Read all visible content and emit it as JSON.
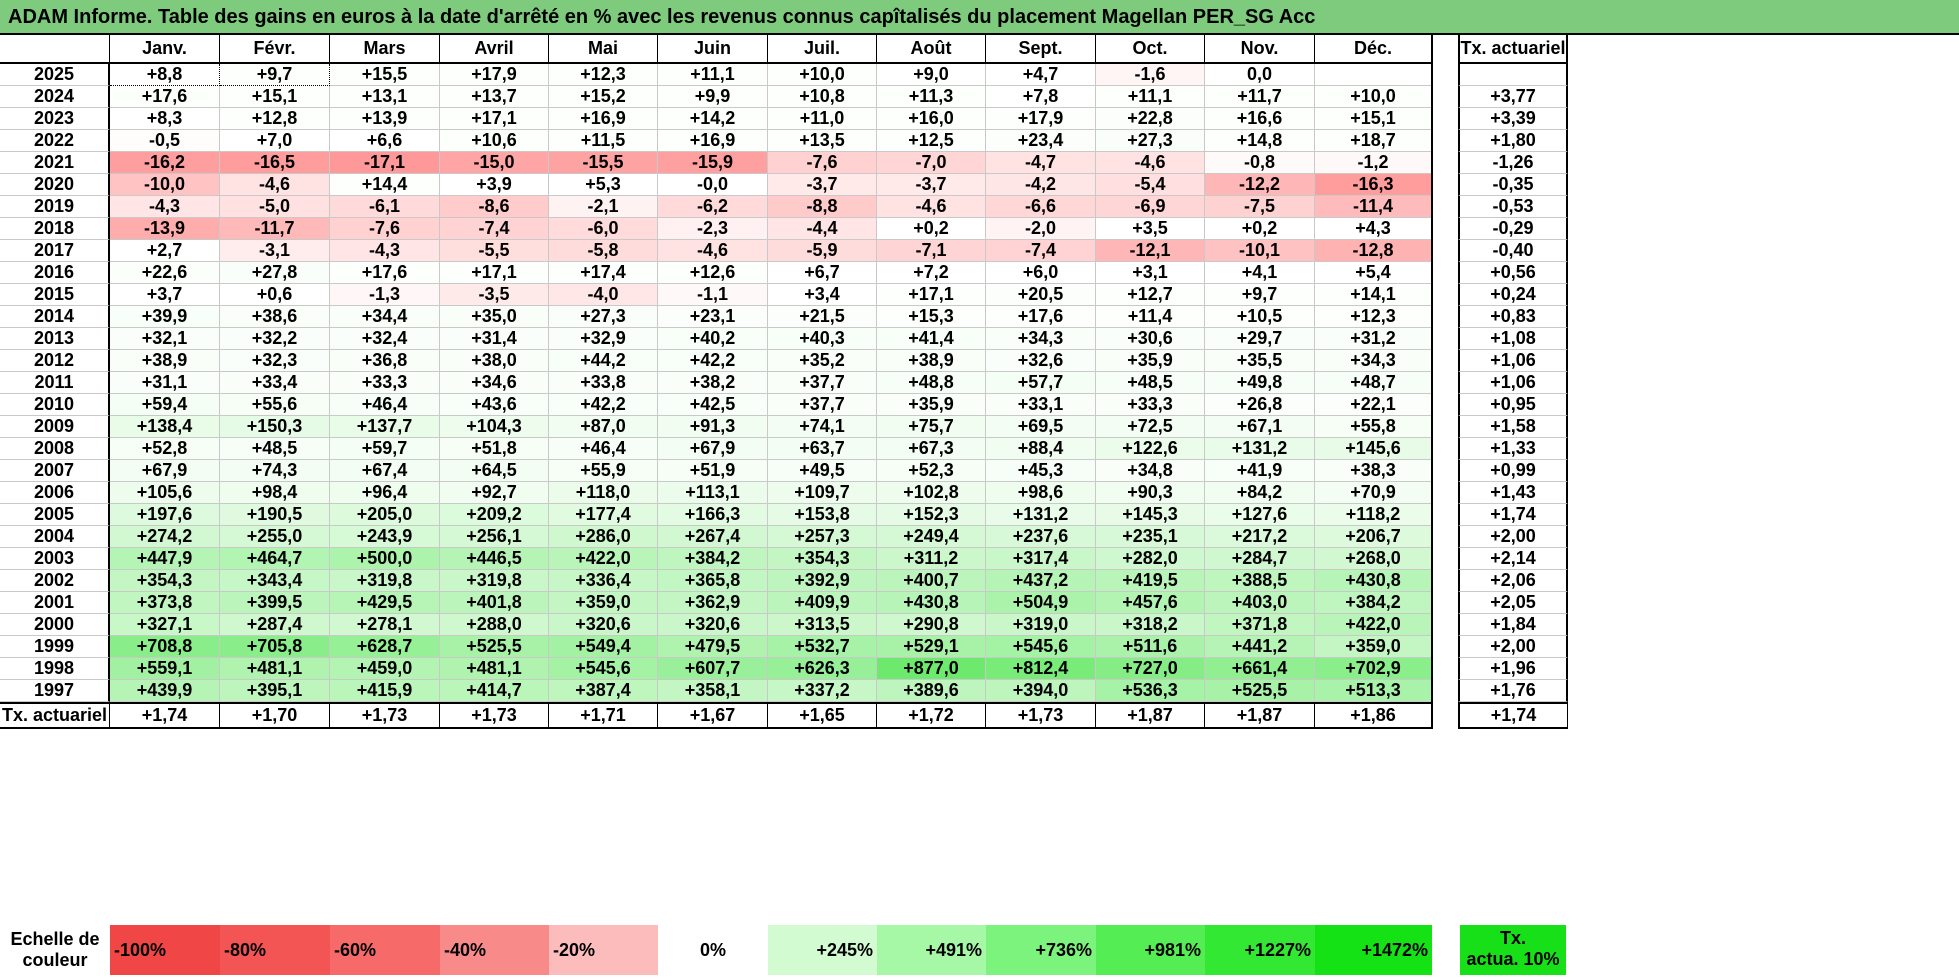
{
  "title": "ADAM Informe. Table des gains en euros à la date d'arrêté en % avec les revenus connus capîtalisés du placement Magellan PER_SG Acc",
  "header": {
    "months": [
      "Janv.",
      "Févr.",
      "Mars",
      "Avril",
      "Mai",
      "Juin",
      "Juil.",
      "Août",
      "Sept.",
      "Oct.",
      "Nov.",
      "Déc."
    ],
    "tx_label": "Tx. actuariel"
  },
  "rows": [
    {
      "year": "2025",
      "values": [
        "+8,8",
        "+9,7",
        "+15,5",
        "+17,9",
        "+12,3",
        "+11,1",
        "+10,0",
        "+9,0",
        "+4,7",
        "-1,6",
        "0,0",
        ""
      ],
      "tx": ""
    },
    {
      "year": "2024",
      "values": [
        "+17,6",
        "+15,1",
        "+13,1",
        "+13,7",
        "+15,2",
        "+9,9",
        "+10,8",
        "+11,3",
        "+7,8",
        "+11,1",
        "+11,7",
        "+10,0"
      ],
      "tx": "+3,77"
    },
    {
      "year": "2023",
      "values": [
        "+8,3",
        "+12,8",
        "+13,9",
        "+17,1",
        "+16,9",
        "+14,2",
        "+11,0",
        "+16,0",
        "+17,9",
        "+22,8",
        "+16,6",
        "+15,1"
      ],
      "tx": "+3,39"
    },
    {
      "year": "2022",
      "values": [
        "-0,5",
        "+7,0",
        "+6,6",
        "+10,6",
        "+11,5",
        "+16,9",
        "+13,5",
        "+12,5",
        "+23,4",
        "+27,3",
        "+14,8",
        "+18,7"
      ],
      "tx": "+1,80"
    },
    {
      "year": "2021",
      "values": [
        "-16,2",
        "-16,5",
        "-17,1",
        "-15,0",
        "-15,5",
        "-15,9",
        "-7,6",
        "-7,0",
        "-4,7",
        "-4,6",
        "-0,8",
        "-1,2"
      ],
      "tx": "-1,26"
    },
    {
      "year": "2020",
      "values": [
        "-10,0",
        "-4,6",
        "+14,4",
        "+3,9",
        "+5,3",
        "-0,0",
        "-3,7",
        "-3,7",
        "-4,2",
        "-5,4",
        "-12,2",
        "-16,3"
      ],
      "tx": "-0,35"
    },
    {
      "year": "2019",
      "values": [
        "-4,3",
        "-5,0",
        "-6,1",
        "-8,6",
        "-2,1",
        "-6,2",
        "-8,8",
        "-4,6",
        "-6,6",
        "-6,9",
        "-7,5",
        "-11,4"
      ],
      "tx": "-0,53"
    },
    {
      "year": "2018",
      "values": [
        "-13,9",
        "-11,7",
        "-7,6",
        "-7,4",
        "-6,0",
        "-2,3",
        "-4,4",
        "+0,2",
        "-2,0",
        "+3,5",
        "+0,2",
        "+4,3"
      ],
      "tx": "-0,29"
    },
    {
      "year": "2017",
      "values": [
        "+2,7",
        "-3,1",
        "-4,3",
        "-5,5",
        "-5,8",
        "-4,6",
        "-5,9",
        "-7,1",
        "-7,4",
        "-12,1",
        "-10,1",
        "-12,8"
      ],
      "tx": "-0,40"
    },
    {
      "year": "2016",
      "values": [
        "+22,6",
        "+27,8",
        "+17,6",
        "+17,1",
        "+17,4",
        "+12,6",
        "+6,7",
        "+7,2",
        "+6,0",
        "+3,1",
        "+4,1",
        "+5,4"
      ],
      "tx": "+0,56"
    },
    {
      "year": "2015",
      "values": [
        "+3,7",
        "+0,6",
        "-1,3",
        "-3,5",
        "-4,0",
        "-1,1",
        "+3,4",
        "+17,1",
        "+20,5",
        "+12,7",
        "+9,7",
        "+14,1"
      ],
      "tx": "+0,24"
    },
    {
      "year": "2014",
      "values": [
        "+39,9",
        "+38,6",
        "+34,4",
        "+35,0",
        "+27,3",
        "+23,1",
        "+21,5",
        "+15,3",
        "+17,6",
        "+11,4",
        "+10,5",
        "+12,3"
      ],
      "tx": "+0,83"
    },
    {
      "year": "2013",
      "values": [
        "+32,1",
        "+32,2",
        "+32,4",
        "+31,4",
        "+32,9",
        "+40,2",
        "+40,3",
        "+41,4",
        "+34,3",
        "+30,6",
        "+29,7",
        "+31,2"
      ],
      "tx": "+1,08"
    },
    {
      "year": "2012",
      "values": [
        "+38,9",
        "+32,3",
        "+36,8",
        "+38,0",
        "+44,2",
        "+42,2",
        "+35,2",
        "+38,9",
        "+32,6",
        "+35,9",
        "+35,5",
        "+34,3"
      ],
      "tx": "+1,06"
    },
    {
      "year": "2011",
      "values": [
        "+31,1",
        "+33,4",
        "+33,3",
        "+34,6",
        "+33,8",
        "+38,2",
        "+37,7",
        "+48,8",
        "+57,7",
        "+48,5",
        "+49,8",
        "+48,7"
      ],
      "tx": "+1,06"
    },
    {
      "year": "2010",
      "values": [
        "+59,4",
        "+55,6",
        "+46,4",
        "+43,6",
        "+42,2",
        "+42,5",
        "+37,7",
        "+35,9",
        "+33,1",
        "+33,3",
        "+26,8",
        "+22,1"
      ],
      "tx": "+0,95"
    },
    {
      "year": "2009",
      "values": [
        "+138,4",
        "+150,3",
        "+137,7",
        "+104,3",
        "+87,0",
        "+91,3",
        "+74,1",
        "+75,7",
        "+69,5",
        "+72,5",
        "+67,1",
        "+55,8"
      ],
      "tx": "+1,58"
    },
    {
      "year": "2008",
      "values": [
        "+52,8",
        "+48,5",
        "+59,7",
        "+51,8",
        "+46,4",
        "+67,9",
        "+63,7",
        "+67,3",
        "+88,4",
        "+122,6",
        "+131,2",
        "+145,6"
      ],
      "tx": "+1,33"
    },
    {
      "year": "2007",
      "values": [
        "+67,9",
        "+74,3",
        "+67,4",
        "+64,5",
        "+55,9",
        "+51,9",
        "+49,5",
        "+52,3",
        "+45,3",
        "+34,8",
        "+41,9",
        "+38,3"
      ],
      "tx": "+0,99"
    },
    {
      "year": "2006",
      "values": [
        "+105,6",
        "+98,4",
        "+96,4",
        "+92,7",
        "+118,0",
        "+113,1",
        "+109,7",
        "+102,8",
        "+98,6",
        "+90,3",
        "+84,2",
        "+70,9"
      ],
      "tx": "+1,43"
    },
    {
      "year": "2005",
      "values": [
        "+197,6",
        "+190,5",
        "+205,0",
        "+209,2",
        "+177,4",
        "+166,3",
        "+153,8",
        "+152,3",
        "+131,2",
        "+145,3",
        "+127,6",
        "+118,2"
      ],
      "tx": "+1,74"
    },
    {
      "year": "2004",
      "values": [
        "+274,2",
        "+255,0",
        "+243,9",
        "+256,1",
        "+286,0",
        "+267,4",
        "+257,3",
        "+249,4",
        "+237,6",
        "+235,1",
        "+217,2",
        "+206,7"
      ],
      "tx": "+2,00"
    },
    {
      "year": "2003",
      "values": [
        "+447,9",
        "+464,7",
        "+500,0",
        "+446,5",
        "+422,0",
        "+384,2",
        "+354,3",
        "+311,2",
        "+317,4",
        "+282,0",
        "+284,7",
        "+268,0"
      ],
      "tx": "+2,14"
    },
    {
      "year": "2002",
      "values": [
        "+354,3",
        "+343,4",
        "+319,8",
        "+319,8",
        "+336,4",
        "+365,8",
        "+392,9",
        "+400,7",
        "+437,2",
        "+419,5",
        "+388,5",
        "+430,8"
      ],
      "tx": "+2,06"
    },
    {
      "year": "2001",
      "values": [
        "+373,8",
        "+399,5",
        "+429,5",
        "+401,8",
        "+359,0",
        "+362,9",
        "+409,9",
        "+430,8",
        "+504,9",
        "+457,6",
        "+403,0",
        "+384,2"
      ],
      "tx": "+2,05"
    },
    {
      "year": "2000",
      "values": [
        "+327,1",
        "+287,4",
        "+278,1",
        "+288,0",
        "+320,6",
        "+320,6",
        "+313,5",
        "+290,8",
        "+319,0",
        "+318,2",
        "+371,8",
        "+422,0"
      ],
      "tx": "+1,84"
    },
    {
      "year": "1999",
      "values": [
        "+708,8",
        "+705,8",
        "+628,7",
        "+525,5",
        "+549,4",
        "+479,5",
        "+532,7",
        "+529,1",
        "+545,6",
        "+511,6",
        "+441,2",
        "+359,0"
      ],
      "tx": "+2,00"
    },
    {
      "year": "1998",
      "values": [
        "+559,1",
        "+481,1",
        "+459,0",
        "+481,1",
        "+545,6",
        "+607,7",
        "+626,3",
        "+877,0",
        "+812,4",
        "+727,0",
        "+661,4",
        "+702,9"
      ],
      "tx": "+1,96"
    },
    {
      "year": "1997",
      "values": [
        "+439,9",
        "+395,1",
        "+415,9",
        "+414,7",
        "+387,4",
        "+358,1",
        "+337,2",
        "+389,6",
        "+394,0",
        "+536,3",
        "+525,5",
        "+513,3"
      ],
      "tx": "+1,76"
    }
  ],
  "footer": {
    "label": "Tx. actuariel",
    "values": [
      "+1,74",
      "+1,70",
      "+1,73",
      "+1,73",
      "+1,71",
      "+1,67",
      "+1,65",
      "+1,72",
      "+1,73",
      "+1,87",
      "+1,87",
      "+1,86"
    ],
    "tx": "+1,74"
  },
  "scale": {
    "label_line1": "Echelle de",
    "label_line2": "couleur",
    "items": [
      {
        "label": "-100%",
        "color": "#f04646",
        "align": "left"
      },
      {
        "label": "-80%",
        "color": "#f35454",
        "align": "left"
      },
      {
        "label": "-60%",
        "color": "#f66a6a",
        "align": "left"
      },
      {
        "label": "-40%",
        "color": "#f98a8a",
        "align": "left"
      },
      {
        "label": "-20%",
        "color": "#fcbcbc",
        "align": "left"
      },
      {
        "label": "0%",
        "color": "#ffffff",
        "align": "center"
      },
      {
        "label": "+245%",
        "color": "#d2fbd2",
        "align": "right"
      },
      {
        "label": "+491%",
        "color": "#a6f7a6",
        "align": "right"
      },
      {
        "label": "+736%",
        "color": "#7cf37c",
        "align": "right"
      },
      {
        "label": "+981%",
        "color": "#54ee54",
        "align": "right"
      },
      {
        "label": "+1227%",
        "color": "#32e832",
        "align": "right"
      },
      {
        "label": "+1472%",
        "color": "#14e214",
        "align": "right"
      }
    ],
    "tx_line1": "Tx.",
    "tx_line2": "actua. 10%",
    "tx_color": "#18e018"
  }
}
